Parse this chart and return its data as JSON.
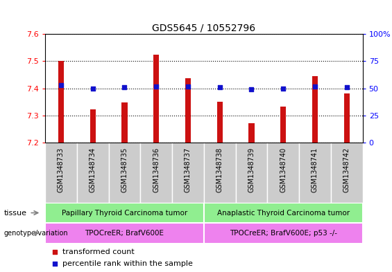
{
  "title": "GDS5645 / 10552796",
  "samples": [
    "GSM1348733",
    "GSM1348734",
    "GSM1348735",
    "GSM1348736",
    "GSM1348737",
    "GSM1348738",
    "GSM1348739",
    "GSM1348740",
    "GSM1348741",
    "GSM1348742"
  ],
  "transformed_count": [
    7.502,
    7.323,
    7.348,
    7.524,
    7.438,
    7.352,
    7.272,
    7.332,
    7.444,
    7.382
  ],
  "percentile_rank": [
    53,
    50,
    51,
    52,
    52,
    51,
    49,
    50,
    52,
    51
  ],
  "ylim_left": [
    7.2,
    7.6
  ],
  "ylim_right": [
    0,
    100
  ],
  "yticks_left": [
    7.2,
    7.3,
    7.4,
    7.5,
    7.6
  ],
  "yticks_right": [
    0,
    25,
    50,
    75,
    100
  ],
  "ytick_labels_right": [
    "0",
    "25",
    "50",
    "75",
    "100%"
  ],
  "bar_color": "#cc1111",
  "dot_color": "#1111cc",
  "tissue_labels": [
    "Papillary Thyroid Carcinoma tumor",
    "Anaplastic Thyroid Carcinoma tumor"
  ],
  "tissue_ranges": [
    [
      0,
      5
    ],
    [
      5,
      10
    ]
  ],
  "tissue_color": "#90ee90",
  "genotype_labels": [
    "TPOCreER; BrafV600E",
    "TPOCreER; BrafV600E; p53 -/-"
  ],
  "genotype_ranges": [
    [
      0,
      5
    ],
    [
      5,
      10
    ]
  ],
  "genotype_color": "#ee82ee",
  "tissue_row_label": "tissue",
  "genotype_row_label": "genotype/variation",
  "legend_bar_label": "transformed count",
  "legend_dot_label": "percentile rank within the sample",
  "grid_linestyle": "dotted",
  "xtick_bg_color": "#cccccc",
  "bar_width": 0.18
}
